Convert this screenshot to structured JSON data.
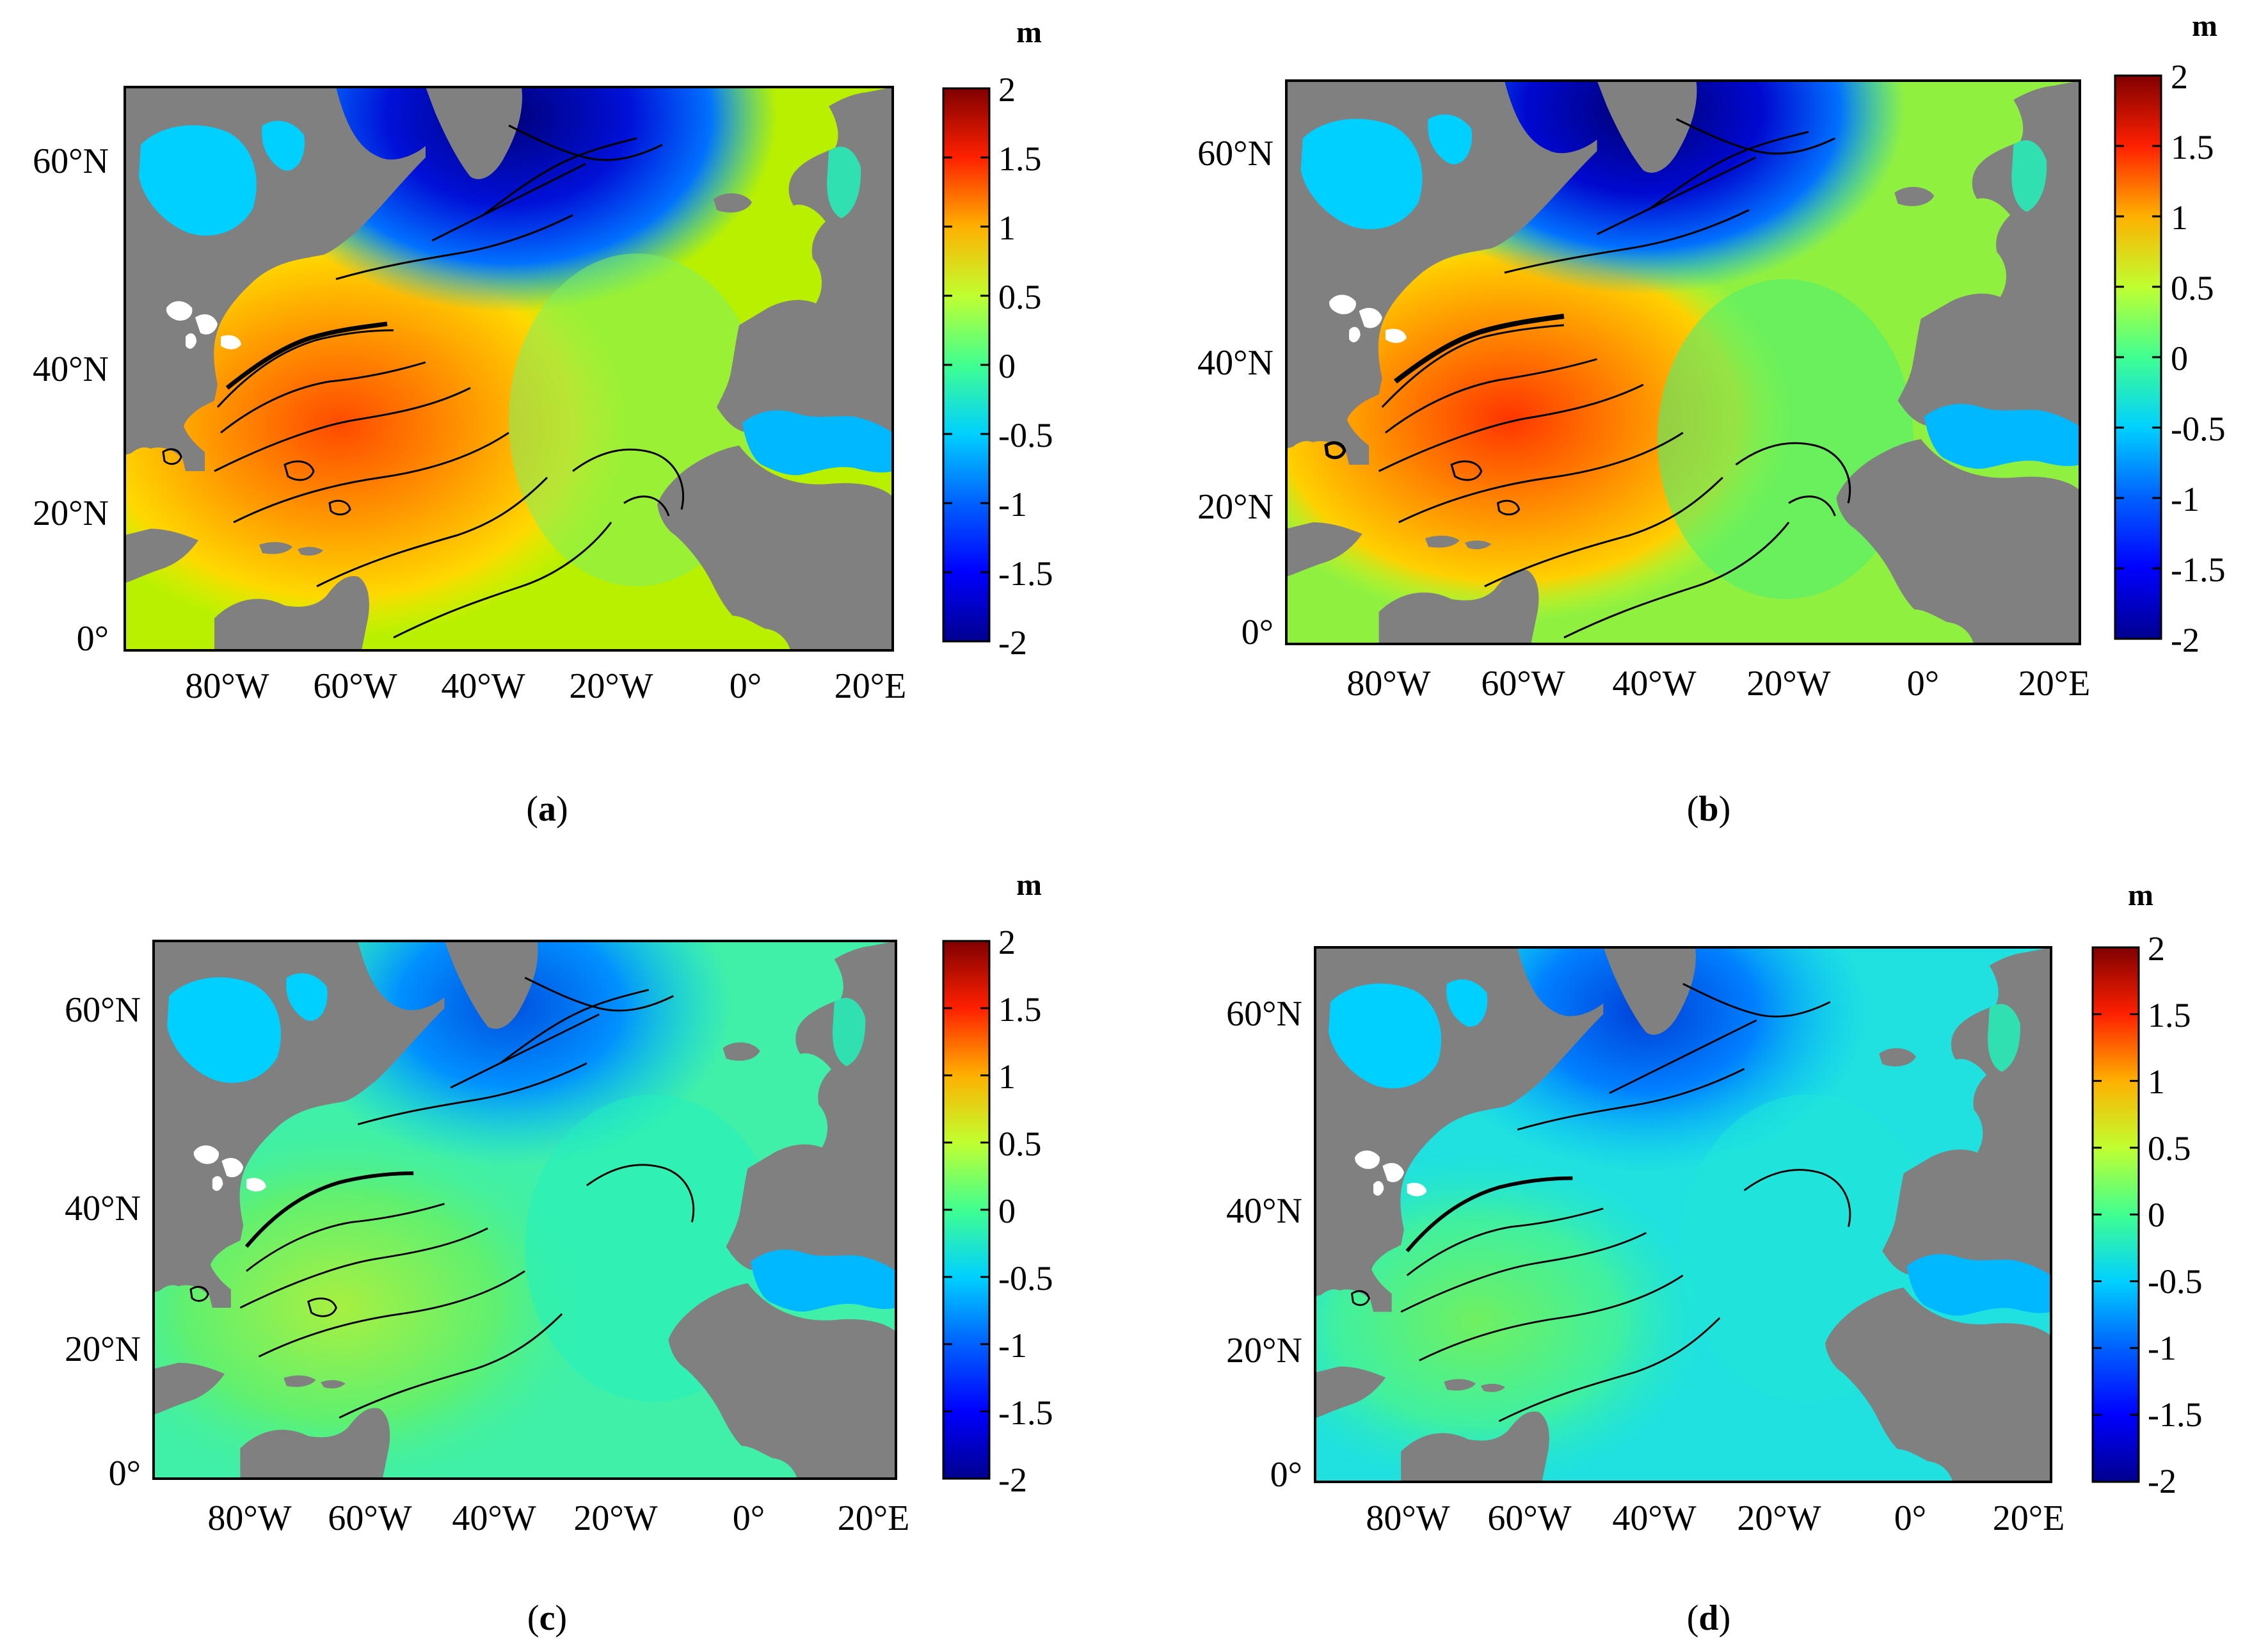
{
  "figure": {
    "panels": [
      {
        "id": "a",
        "caption_letter": "a"
      },
      {
        "id": "b",
        "caption_letter": "b"
      },
      {
        "id": "c",
        "caption_letter": "c"
      },
      {
        "id": "d",
        "caption_letter": "d"
      }
    ],
    "lon_labels": [
      "80°W",
      "60°W",
      "40°W",
      "20°W",
      "0°",
      "20°E"
    ],
    "lat_labels": [
      "0°",
      "20°N",
      "40°N",
      "60°N"
    ],
    "colorbar": {
      "unit": "m",
      "ticks": [
        "2",
        "1.5",
        "1",
        "0.5",
        "0",
        "-0.5",
        "-1",
        "-1.5",
        "-2"
      ],
      "range": [
        -2,
        2
      ],
      "colors": [
        "#00008f",
        "#0000ff",
        "#0080ff",
        "#00ffff",
        "#80ff80",
        "#ffff00",
        "#ff8000",
        "#ff0000",
        "#800000"
      ]
    },
    "colors": {
      "land": "#808080",
      "lakes": "#ffffff",
      "contour": "#000000"
    }
  },
  "chart_data": {
    "type": "heatmap",
    "panels": [
      "a",
      "b",
      "c",
      "d"
    ],
    "x_ticks": [
      "80°W",
      "60°W",
      "40°W",
      "20°W",
      "0°",
      "20°E"
    ],
    "y_ticks": [
      "0°",
      "20°N",
      "40°N",
      "60°N"
    ],
    "xlim": [
      -95,
      23
    ],
    "ylim": [
      0,
      68
    ],
    "colorbar_range": [
      -2,
      2
    ],
    "colorbar_unit": "m",
    "colormap": "jet"
  }
}
